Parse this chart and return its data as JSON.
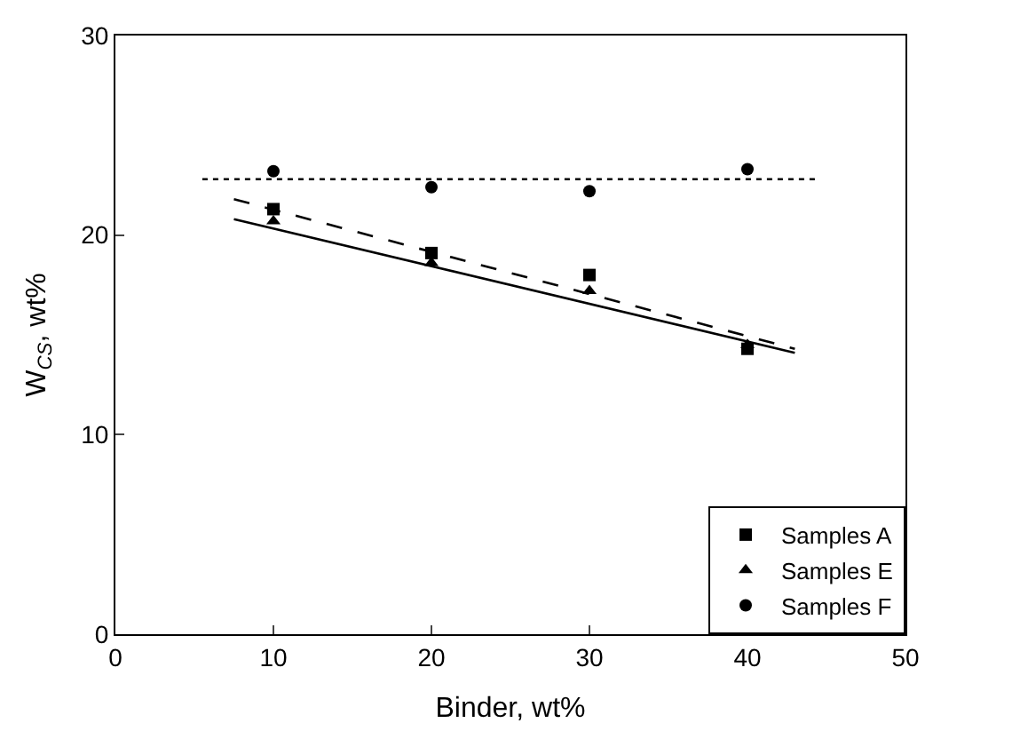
{
  "chart_data": {
    "type": "scatter",
    "xlabel": "Binder, wt%",
    "ylabel": "W$_{CS}$, wt%",
    "xlim": [
      0,
      50
    ],
    "xticks": [
      0,
      10,
      20,
      30,
      40,
      50
    ],
    "ylim": [
      0,
      30
    ],
    "yticks": [
      0,
      10,
      20,
      30
    ],
    "legend": "bottom right",
    "series": [
      {
        "name": "Samples A",
        "marker": "square",
        "color": "#000000",
        "x": [
          10,
          20,
          30,
          40
        ],
        "values": [
          21.3,
          19.1,
          18.0,
          14.3
        ]
      },
      {
        "name": "Samples E",
        "marker": "triangle",
        "color": "#000000",
        "x": [
          10,
          20,
          30,
          40
        ],
        "values": [
          20.7,
          18.6,
          17.2,
          14.5
        ]
      },
      {
        "name": "Samples F",
        "marker": "circle",
        "color": "#000000",
        "x": [
          10,
          20,
          30,
          40
        ],
        "values": [
          23.2,
          22.4,
          22.2,
          23.3
        ]
      },
      {
        "type": "line",
        "line_style": "dashed",
        "color": "#000000",
        "x": [
          7.5,
          43
        ],
        "values": [
          21.8,
          14.3
        ]
      },
      {
        "type": "line",
        "line_style": "solid",
        "color": "#000000",
        "x": [
          7.5,
          43
        ],
        "values": [
          20.8,
          14.1
        ]
      },
      {
        "type": "line",
        "line_style": "dotted",
        "color": "#000000",
        "x": [
          5.5,
          44.5
        ],
        "values": [
          22.8,
          22.8
        ]
      }
    ]
  }
}
